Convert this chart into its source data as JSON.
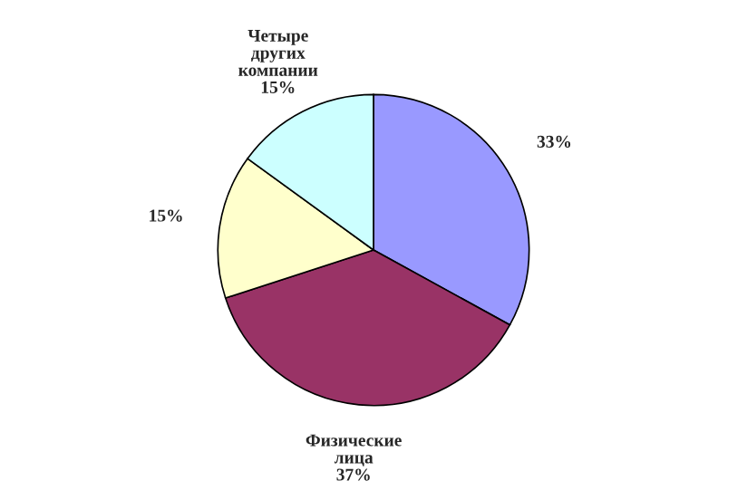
{
  "chart_data": {
    "type": "pie",
    "categories": [
      null,
      "Физические лица",
      null,
      "Четыре других компании"
    ],
    "values": [
      33,
      37,
      15,
      15
    ],
    "value_labels": [
      "33%",
      "37%",
      "15%",
      "15%"
    ],
    "colors": [
      "#9999ff",
      "#993366",
      "#ffffcc",
      "#ccffff"
    ],
    "legend": false
  }
}
